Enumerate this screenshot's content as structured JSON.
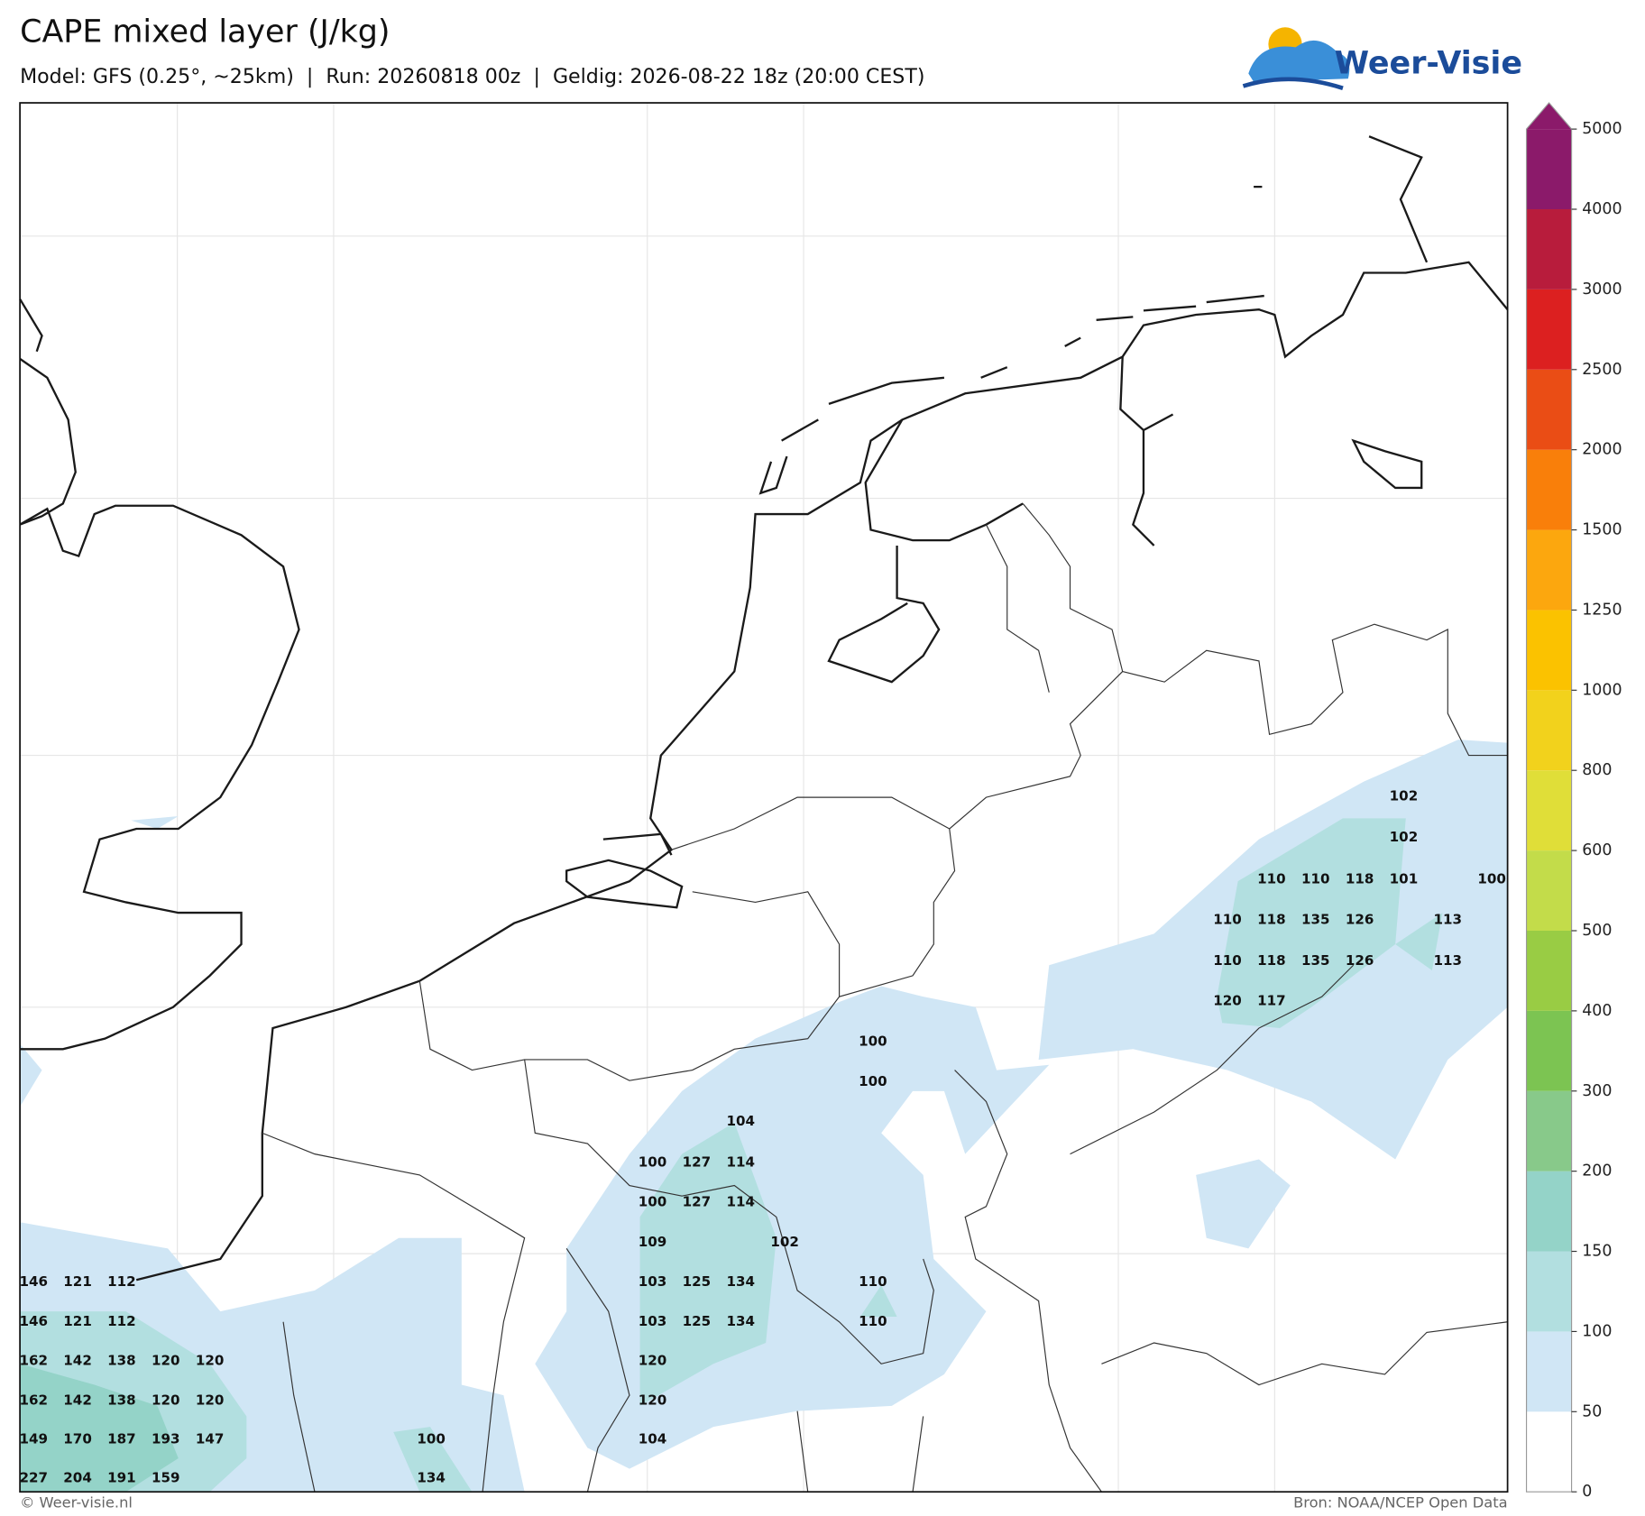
{
  "header": {
    "title": "CAPE mixed layer (J/kg)",
    "subtitle": "Model: GFS (0.25°, ~25km)  |  Run: 20260818 00z  |  Geldig: 2026-08-22 18z (20:00 CEST)",
    "logo": "Weer-Visie"
  },
  "colorbar": {
    "levels": [
      0,
      50,
      100,
      150,
      200,
      300,
      400,
      500,
      600,
      800,
      1000,
      1250,
      1500,
      2000,
      2500,
      3000,
      4000,
      5000
    ],
    "colors": [
      "#ffffff",
      "#d0e6f5",
      "#b2dfe0",
      "#94d3c8",
      "#88c98a",
      "#7cc452",
      "#99cc44",
      "#c3dc4a",
      "#e0de38",
      "#f2d21c",
      "#fbc200",
      "#fca70e",
      "#f97f0a",
      "#ea4d15",
      "#dc2020",
      "#b81c3c",
      "#8b1a6a"
    ],
    "extend_color": "#8b1a6a"
  },
  "map": {
    "values": [
      102,
      102,
      110,
      110,
      118,
      101,
      100,
      110,
      118,
      135,
      126,
      113,
      110,
      118,
      135,
      126,
      113,
      120,
      117,
      100,
      100,
      104,
      100,
      127,
      114,
      100,
      127,
      114,
      109,
      102,
      146,
      121,
      112,
      103,
      125,
      134,
      110,
      146,
      121,
      112,
      103,
      125,
      134,
      110,
      162,
      142,
      138,
      120,
      120,
      120,
      162,
      142,
      138,
      120,
      120,
      120,
      149,
      170,
      187,
      193,
      147,
      100,
      104,
      227,
      204,
      191,
      159,
      134
    ]
  },
  "footer": {
    "credit": "© Weer-visie.nl",
    "source": "Bron: NOAA/NCEP Open Data"
  }
}
